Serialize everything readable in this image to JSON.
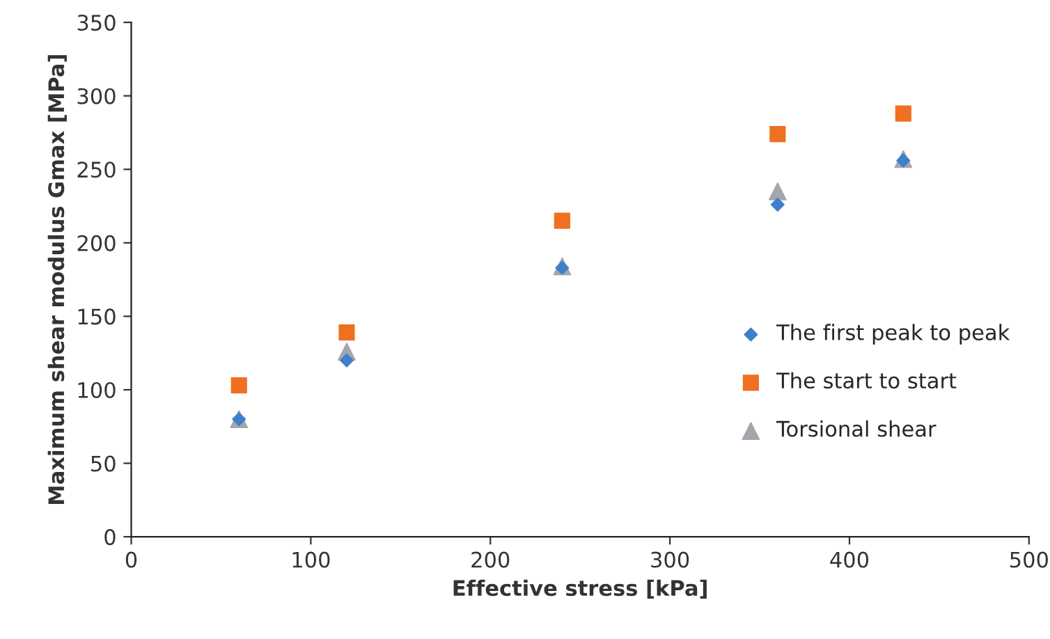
{
  "chart_data": {
    "type": "scatter",
    "xlabel": "Effective stress [kPa]",
    "ylabel": "Maximum shear modulus Gmax [MPa]",
    "x": [
      60,
      120,
      240,
      360,
      430
    ],
    "series": [
      {
        "name": "The first peak to peak",
        "color": "#3f7fcc",
        "marker": "diamond",
        "values": [
          80,
          120,
          183,
          226,
          256
        ]
      },
      {
        "name": "The start to start",
        "color": "#f07022",
        "marker": "square",
        "values": [
          103,
          139,
          215,
          274,
          288
        ]
      },
      {
        "name": "Torsional shear",
        "color": "#a3a6ad",
        "marker": "triangle",
        "values": [
          80,
          126,
          184,
          235,
          257
        ]
      }
    ],
    "xlim": [
      0,
      500
    ],
    "xticks": [
      0,
      100,
      200,
      300,
      400,
      500
    ],
    "ylim": [
      0,
      350
    ],
    "yticks": [
      0,
      50,
      100,
      150,
      200,
      250,
      300,
      350
    ],
    "grid": false,
    "legend": "right"
  }
}
